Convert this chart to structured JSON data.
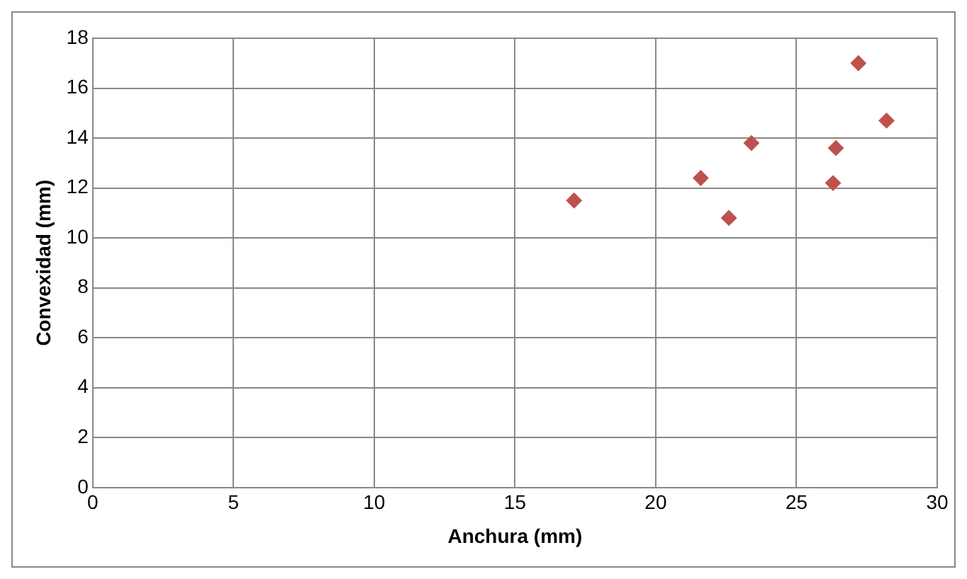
{
  "chart_data": {
    "type": "scatter",
    "xlabel": "Anchura (mm)",
    "ylabel": "Convexidad (mm)",
    "x": [
      17.1,
      21.6,
      22.6,
      23.4,
      26.3,
      26.4,
      27.2,
      28.2
    ],
    "series": [
      {
        "color": "#c0504d",
        "values": [
          11.5,
          12.4,
          10.8,
          13.8,
          12.2,
          13.6,
          17.0,
          14.7
        ]
      }
    ],
    "xlim": [
      0,
      30
    ],
    "xticks": [
      0,
      5,
      10,
      15,
      20,
      25,
      30
    ],
    "ylim": [
      0,
      18
    ],
    "yticks": [
      0,
      2,
      4,
      6,
      8,
      10,
      12,
      14,
      16,
      18
    ],
    "grid": true,
    "legend": false,
    "marker": "diamond"
  }
}
